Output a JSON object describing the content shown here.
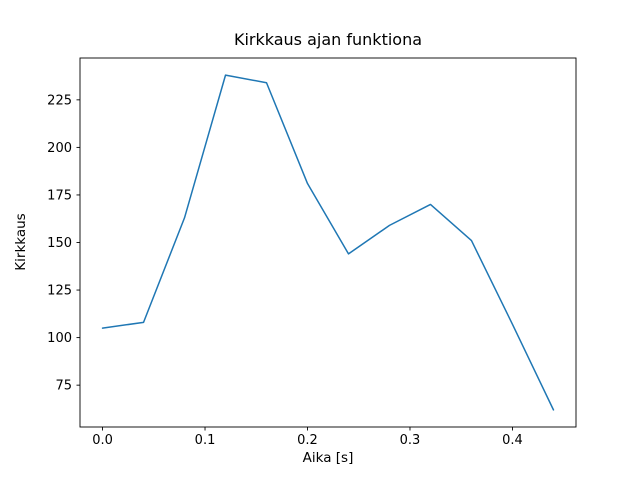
{
  "chart_data": {
    "type": "line",
    "title": "Kirkkaus ajan funktiona",
    "xlabel": "Aika [s]",
    "ylabel": "Kirkkaus",
    "x": [
      0.0,
      0.04,
      0.08,
      0.12,
      0.16,
      0.2,
      0.24,
      0.28,
      0.32,
      0.36,
      0.4,
      0.44
    ],
    "y": [
      105,
      108,
      163,
      238,
      234,
      181,
      144,
      159,
      170,
      151,
      107,
      62
    ],
    "xlim": [
      -0.022,
      0.462
    ],
    "ylim": [
      53,
      247
    ],
    "xticks": [
      0.0,
      0.1,
      0.2,
      0.3,
      0.4
    ],
    "xtick_labels": [
      "0.0",
      "0.1",
      "0.2",
      "0.3",
      "0.4"
    ],
    "yticks": [
      75,
      100,
      125,
      150,
      175,
      200,
      225
    ],
    "ytick_labels": [
      "75",
      "100",
      "125",
      "150",
      "175",
      "200",
      "225"
    ],
    "line_color": "#1f77b4",
    "line_width": 1.5,
    "spine_color": "#000000",
    "background_color": "#ffffff",
    "grid": false,
    "legend": null
  }
}
